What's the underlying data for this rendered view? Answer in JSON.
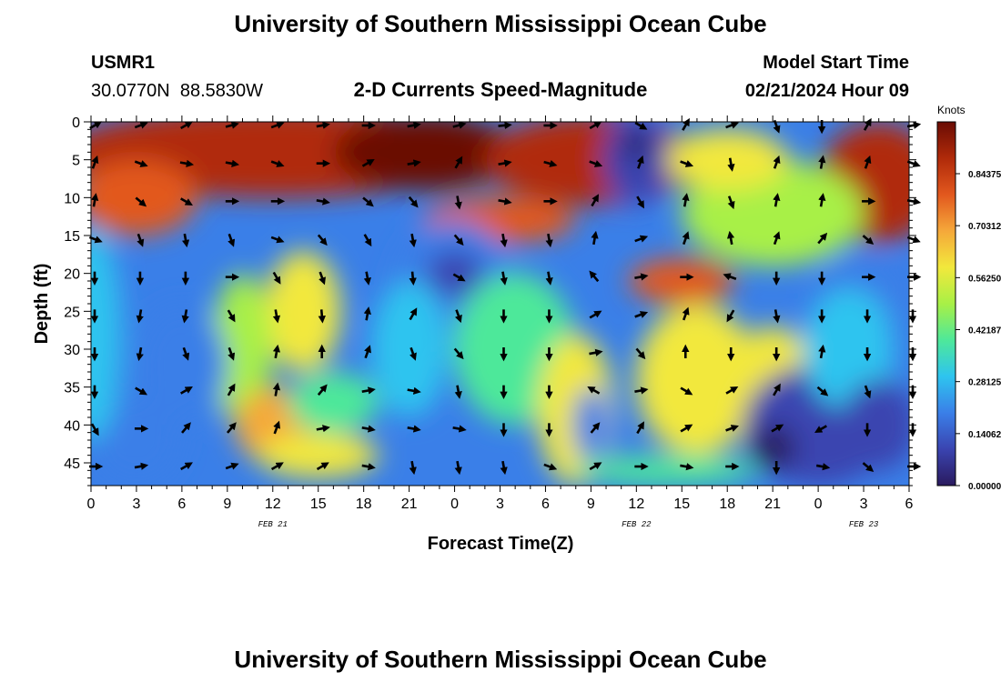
{
  "page": {
    "title": "University of Southern Mississippi Ocean Cube",
    "station_id": "USMR1",
    "coordinates": "30.0770N  88.5830W",
    "subtitle": "2-D Currents Speed-Magnitude",
    "model_start_label": "Model Start Time",
    "model_start_value": "02/21/2024 Hour 09",
    "footer_title": "University of Southern Mississippi Ocean Cube"
  },
  "chart_data": {
    "type": "heatmap",
    "title": "2-D Currents Speed-Magnitude",
    "xlabel": "Forecast Time(Z)",
    "ylabel": "Depth (ft)",
    "xlim": [
      0,
      54
    ],
    "ylim": [
      0,
      48
    ],
    "x_ticks": [
      0,
      3,
      6,
      9,
      12,
      15,
      18,
      21,
      24,
      27,
      30,
      33,
      36,
      39,
      42,
      45,
      48,
      51,
      54
    ],
    "x_tick_labels": [
      "0",
      "3",
      "6",
      "9",
      "12",
      "15",
      "18",
      "21",
      "0",
      "3",
      "6",
      "9",
      "12",
      "15",
      "18",
      "21",
      "0",
      "3",
      "6"
    ],
    "y_ticks": [
      0,
      5,
      10,
      15,
      20,
      25,
      30,
      35,
      40,
      45
    ],
    "y_tick_labels": [
      "0",
      "5",
      "10",
      "15",
      "20",
      "25",
      "30",
      "35",
      "40",
      "45"
    ],
    "date_labels": [
      {
        "x": 12,
        "text": "FEB 21"
      },
      {
        "x": 36,
        "text": "FEB 22"
      },
      {
        "x": 51,
        "text": "FEB 23"
      }
    ],
    "colorbar": {
      "unit": "Knots",
      "min": 0,
      "max": 0.984,
      "ticks": [
        0.0,
        0.140625,
        0.28125,
        0.421875,
        0.5625,
        0.703125,
        0.84375
      ],
      "tick_labels": [
        "0.000000",
        "0.140625",
        "0.281250",
        "0.421875",
        "0.562500",
        "0.703125",
        "0.843750"
      ],
      "colormap": [
        "#2a1a5e",
        "#3a44b0",
        "#3a7fe8",
        "#2ec4ef",
        "#4ee89a",
        "#a8f046",
        "#f2e83c",
        "#f5a83a",
        "#e2581e",
        "#b02a0a",
        "#6a0c04"
      ]
    },
    "vector_x": [
      0,
      3,
      6,
      9,
      12,
      15,
      18,
      21,
      24,
      27,
      30,
      33,
      36,
      39,
      42,
      45,
      48,
      51,
      54
    ],
    "vector_depths": [
      0,
      5,
      10,
      15,
      20,
      25,
      30,
      35,
      40,
      45
    ],
    "vector_directions_deg": [
      [
        60,
        70,
        60,
        75,
        70,
        80,
        90,
        80,
        75,
        85,
        90,
        60,
        120,
        30,
        70,
        160,
        180,
        30,
        80
      ],
      [
        20,
        110,
        100,
        100,
        110,
        90,
        60,
        80,
        30,
        80,
        105,
        110,
        20,
        110,
        170,
        20,
        10,
        20,
        110
      ],
      [
        10,
        130,
        120,
        90,
        90,
        100,
        130,
        140,
        170,
        100,
        90,
        30,
        150,
        10,
        160,
        10,
        10,
        90,
        100
      ],
      [
        110,
        160,
        170,
        160,
        110,
        140,
        150,
        170,
        140,
        170,
        170,
        10,
        70,
        20,
        350,
        20,
        40,
        130,
        110
      ],
      [
        180,
        180,
        180,
        90,
        150,
        160,
        170,
        175,
        120,
        170,
        170,
        320,
        80,
        90,
        290,
        180,
        180,
        90,
        90
      ],
      [
        180,
        190,
        190,
        150,
        170,
        175,
        10,
        30,
        160,
        180,
        180,
        60,
        70,
        20,
        210,
        170,
        180,
        180,
        180
      ],
      [
        180,
        190,
        160,
        160,
        10,
        0,
        20,
        160,
        140,
        180,
        180,
        80,
        140,
        0,
        180,
        180,
        10,
        180,
        180
      ],
      [
        180,
        120,
        60,
        30,
        10,
        40,
        80,
        100,
        170,
        180,
        180,
        300,
        80,
        120,
        60,
        30,
        130,
        160,
        180
      ],
      [
        150,
        90,
        40,
        40,
        20,
        80,
        100,
        100,
        100,
        180,
        180,
        40,
        30,
        60,
        70,
        60,
        240,
        180,
        180
      ],
      [
        90,
        80,
        60,
        70,
        60,
        60,
        100,
        170,
        170,
        170,
        110,
        60,
        90,
        100,
        90,
        180,
        100,
        130,
        90
      ]
    ]
  }
}
